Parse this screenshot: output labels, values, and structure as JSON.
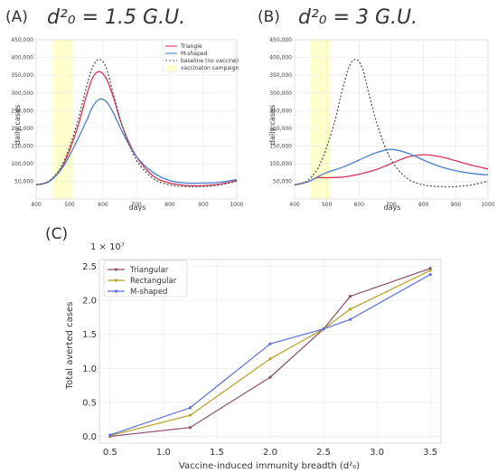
{
  "figure": {
    "panel_a_label": "(A)",
    "panel_a_title": "d²₀ = 1.5 G.U.",
    "panel_b_label": "(B)",
    "panel_b_title": "d²₀ = 3 G.U.",
    "panel_c_label": "(C)"
  },
  "chart_data": [
    {
      "id": "A",
      "type": "line",
      "xlabel": "days",
      "ylabel": "daily cases",
      "xlim": [
        400,
        1000
      ],
      "ylim": [
        0,
        450000
      ],
      "xticks": [
        "400",
        "500",
        "600",
        "700",
        "800",
        "900",
        "1000"
      ],
      "yticks": [
        "50,000",
        "100,000",
        "150,000",
        "200,000",
        "250,000",
        "300,000",
        "350,000",
        "400,000",
        "450,000"
      ],
      "shaded_region": {
        "label": "vaccinaton campaign",
        "x": [
          450,
          510
        ],
        "color": "#ffffcc"
      },
      "legend": "top-right",
      "grid": true,
      "series": [
        {
          "name": "Triangle",
          "color": "#d6335a",
          "dash": "none",
          "x": [
            400,
            440,
            480,
            520,
            550,
            570,
            590,
            610,
            630,
            660,
            700,
            750,
            800,
            850,
            900,
            950,
            1000
          ],
          "y": [
            40000,
            50000,
            95000,
            190000,
            290000,
            345000,
            360000,
            340000,
            290000,
            200000,
            120000,
            65000,
            45000,
            38000,
            38000,
            42000,
            52000
          ]
        },
        {
          "name": "M-shaped",
          "color": "#4a7fd0",
          "dash": "none",
          "x": [
            400,
            440,
            480,
            520,
            550,
            570,
            590,
            610,
            630,
            660,
            700,
            750,
            800,
            850,
            900,
            950,
            1000
          ],
          "y": [
            40000,
            50000,
            90000,
            160000,
            220000,
            262000,
            282000,
            275000,
            245000,
            185000,
            120000,
            75000,
            52000,
            45000,
            45000,
            47000,
            55000
          ]
        },
        {
          "name": "baseline (no vaccine)",
          "color": "#555555",
          "dash": "2,2",
          "x": [
            400,
            440,
            480,
            520,
            550,
            570,
            590,
            610,
            630,
            660,
            700,
            750,
            800,
            850,
            900,
            950,
            1000
          ],
          "y": [
            40000,
            52000,
            100000,
            205000,
            315000,
            375000,
            395000,
            370000,
            300000,
            200000,
            110000,
            58000,
            40000,
            35000,
            35000,
            40000,
            50000
          ]
        }
      ]
    },
    {
      "id": "B",
      "type": "line",
      "xlabel": "days",
      "ylabel": "daily cases",
      "xlim": [
        400,
        1000
      ],
      "ylim": [
        0,
        450000
      ],
      "xticks": [
        "400",
        "500",
        "600",
        "700",
        "800",
        "900",
        "1000"
      ],
      "yticks": [
        "50,000",
        "100,000",
        "150,000",
        "200,000",
        "250,000",
        "300,000",
        "350,000",
        "400,000",
        "450,000"
      ],
      "shaded_region": {
        "label": "vaccinaton campaign",
        "x": [
          450,
          510
        ],
        "color": "#ffffcc"
      },
      "grid": true,
      "series": [
        {
          "name": "Triangle",
          "color": "#d6335a",
          "dash": "none",
          "x": [
            400,
            440,
            470,
            500,
            550,
            600,
            650,
            700,
            750,
            800,
            850,
            900,
            950,
            1000
          ],
          "y": [
            40000,
            48000,
            60000,
            60000,
            62000,
            70000,
            82000,
            100000,
            118000,
            125000,
            120000,
            108000,
            95000,
            85000
          ]
        },
        {
          "name": "M-shaped",
          "color": "#4a7fd0",
          "dash": "none",
          "x": [
            400,
            440,
            470,
            500,
            550,
            600,
            650,
            700,
            750,
            800,
            850,
            900,
            950,
            1000
          ],
          "y": [
            40000,
            48000,
            62000,
            75000,
            90000,
            110000,
            130000,
            140000,
            130000,
            110000,
            92000,
            80000,
            72000,
            68000
          ]
        },
        {
          "name": "baseline (no vaccine)",
          "color": "#555555",
          "dash": "2,2",
          "x": [
            400,
            440,
            480,
            520,
            550,
            570,
            590,
            610,
            630,
            660,
            700,
            750,
            800,
            850,
            900,
            950,
            1000
          ],
          "y": [
            40000,
            52000,
            100000,
            205000,
            315000,
            375000,
            395000,
            370000,
            300000,
            200000,
            110000,
            58000,
            40000,
            35000,
            35000,
            40000,
            50000
          ]
        }
      ]
    },
    {
      "id": "C",
      "type": "line",
      "multiplier_label": "1 × 10⁷",
      "xlabel": "Vaccine-induced immunity breadth (d²₀)",
      "ylabel": "Total averted cases",
      "xlim": [
        0.4,
        3.6
      ],
      "ylim": [
        -0.1,
        2.6
      ],
      "xticks": [
        "0.5",
        "1.0",
        "1.5",
        "2.0",
        "2.5",
        "3.0",
        "3.5"
      ],
      "yticks": [
        "0.0",
        "0.5",
        "1.0",
        "1.5",
        "2.0",
        "2.5"
      ],
      "legend": "top-left",
      "grid": true,
      "series": [
        {
          "name": "Triangular",
          "color": "#8b4a6b",
          "x": [
            0.5,
            1.25,
            2.0,
            2.5,
            2.75,
            3.5
          ],
          "y": [
            0.0,
            0.13,
            0.87,
            1.58,
            2.06,
            2.47
          ]
        },
        {
          "name": "Rectangular",
          "color": "#b8a020",
          "x": [
            0.5,
            1.25,
            2.0,
            2.5,
            2.75,
            3.5
          ],
          "y": [
            0.01,
            0.31,
            1.14,
            1.58,
            1.87,
            2.44
          ]
        },
        {
          "name": "M-shaped",
          "color": "#5a6fe0",
          "x": [
            0.5,
            1.25,
            2.0,
            2.5,
            2.75,
            3.5
          ],
          "y": [
            0.02,
            0.42,
            1.36,
            1.58,
            1.72,
            2.38
          ]
        }
      ]
    }
  ]
}
